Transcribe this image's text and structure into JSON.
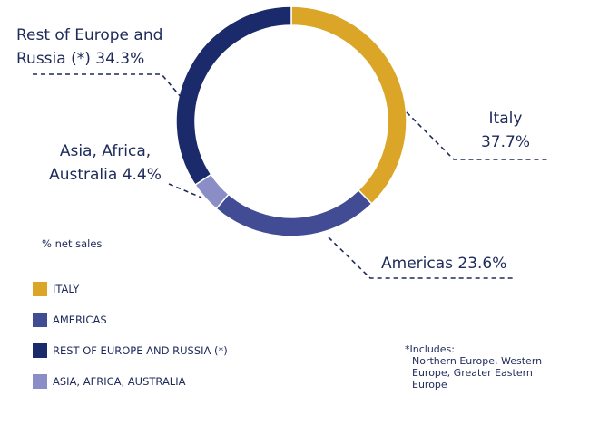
{
  "chart_data": {
    "type": "pie",
    "variant": "donut",
    "unit_label": "% net sales",
    "start_angle_deg": 0,
    "direction": "clockwise",
    "slices": [
      {
        "label": "Italy",
        "legend": "ITALY",
        "value": 37.7,
        "value_text": "37.7%",
        "color": "#dba628"
      },
      {
        "label": "Americas",
        "legend": "AMERICAS",
        "value": 23.6,
        "value_text": "23.6%",
        "color": "#424c94"
      },
      {
        "label": "Asia, Africa, Australia",
        "legend": "ASIA, AFRICA, AUSTRALIA",
        "value": 4.4,
        "value_text": "4.4%",
        "color": "#8b8ec6"
      },
      {
        "label": "Rest of Europe and Russia (*)",
        "legend": "REST OF EUROPE AND RUSSIA (*)",
        "value": 34.3,
        "value_text": "34.3%",
        "color": "#1b2a6b"
      }
    ],
    "legend_order": [
      0,
      1,
      3,
      2
    ]
  },
  "labels": {
    "italy": {
      "line1": "Italy",
      "line2": "37.7%"
    },
    "americas": {
      "line1": "Americas 23.6%"
    },
    "asia": {
      "line1": "Asia, Africa,",
      "line2": "Australia 4.4%"
    },
    "europe": {
      "line1": "Rest of Europe and",
      "line2": "Russia (*) 34.3%"
    }
  },
  "footnote": {
    "line1": "*Includes:",
    "line2": "Northern Europe, Western",
    "line3": "Europe, Greater Eastern",
    "line4": "Europe"
  },
  "colors": {
    "text": "#1e2a5a",
    "leader": "#1e2a5a"
  }
}
